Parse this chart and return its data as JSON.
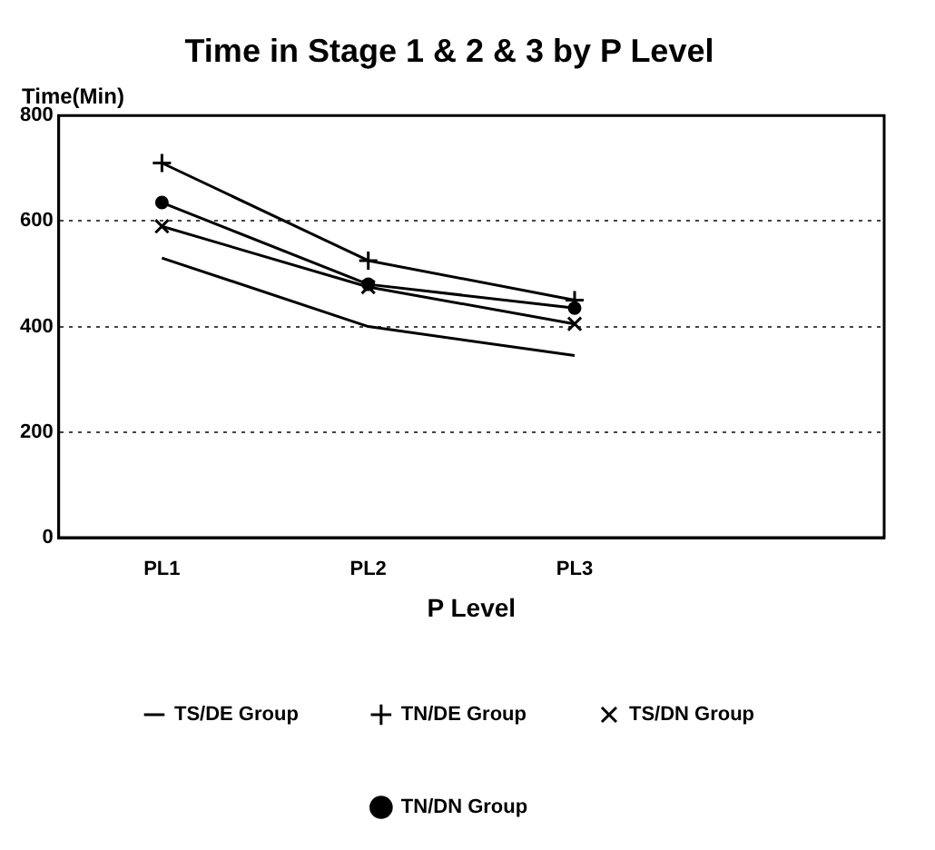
{
  "chart_data": {
    "type": "line",
    "title": "Time in Stage 1 & 2 & 3 by P Level",
    "xlabel": "P Level",
    "ylabel": "Time(Min)",
    "categories": [
      "PL1",
      "PL2",
      "PL3",
      null
    ],
    "series": [
      {
        "name": "TS/DE Group",
        "color": "#000000",
        "marker": "none",
        "values": [
          530,
          400,
          345,
          null
        ]
      },
      {
        "name": "TN/DE Group",
        "color": "#000000",
        "marker": "cross",
        "values": [
          710,
          525,
          450,
          null
        ]
      },
      {
        "name": "TS/DN Group",
        "color": "#000000",
        "marker": "x",
        "values": [
          590,
          475,
          405,
          null
        ]
      },
      {
        "name": "TN/DN Group",
        "color": "#000000",
        "marker": "circle",
        "values": [
          635,
          480,
          435,
          null
        ]
      }
    ],
    "ylim": [
      0,
      800
    ],
    "yticks": [
      0,
      200,
      400,
      600,
      800
    ],
    "grid": "y",
    "legend": "bottom",
    "line_style": "solid"
  }
}
